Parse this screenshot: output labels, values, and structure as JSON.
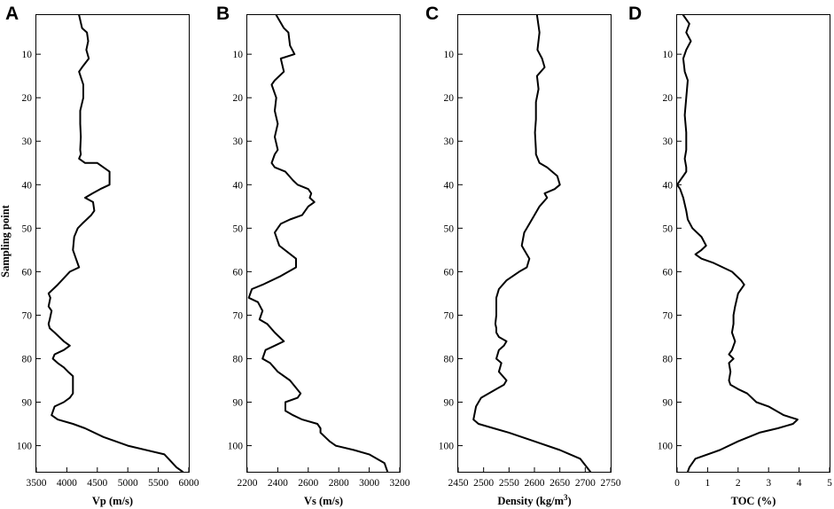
{
  "chart_data": [
    {
      "type": "line",
      "panel_label": "A",
      "xlabel": "Vp (m/s)",
      "ylabel": "Sampling point",
      "xlim": [
        3500,
        6000
      ],
      "ylim": [
        1,
        106
      ],
      "y_inverted": true,
      "xticks": [
        "3500",
        "4000",
        "4500",
        "5000",
        "5500",
        "6000"
      ],
      "yticks": [
        "10",
        "20",
        "30",
        "40",
        "50",
        "60",
        "70",
        "80",
        "90",
        "100"
      ],
      "grid": false,
      "series": [
        {
          "x": [
            4200,
            4250,
            4330,
            4350,
            4320,
            4360,
            4250,
            4200,
            4270,
            4270,
            4220,
            4220,
            4230,
            4220,
            4230,
            4200,
            4300,
            4500,
            4700,
            4700,
            4550,
            4420,
            4300,
            4430,
            4450,
            4400,
            4250,
            4180,
            4120,
            4100,
            4150,
            4200,
            4050,
            3850,
            3700,
            3730,
            3700,
            3750,
            3720,
            3700,
            3720,
            3800,
            3950,
            4050,
            3950,
            3800,
            3770,
            3850,
            3950,
            4020,
            4100,
            4100,
            4050,
            3950,
            3800,
            3750,
            3850,
            4100,
            4300,
            4600,
            5000,
            5600,
            5800,
            5900
          ],
          "y": [
            1,
            4,
            5,
            7,
            9,
            11,
            13,
            14,
            17,
            20,
            23,
            26,
            29,
            32,
            33,
            34,
            35,
            35,
            37,
            40,
            41,
            42,
            43,
            44,
            46,
            47,
            49,
            50,
            52,
            55,
            57,
            59,
            60,
            63,
            65,
            66,
            68,
            69,
            71,
            72,
            73,
            74,
            76,
            77,
            78,
            79,
            80,
            81,
            82,
            83,
            84,
            88,
            89,
            90,
            91,
            93,
            94,
            95,
            96,
            98,
            100,
            102,
            105,
            106
          ]
        }
      ]
    },
    {
      "type": "line",
      "panel_label": "B",
      "xlabel": "Vs (m/s)",
      "ylabel": "",
      "xlim": [
        2200,
        3200
      ],
      "ylim": [
        1,
        106
      ],
      "y_inverted": true,
      "xticks": [
        "2200",
        "2400",
        "2600",
        "2800",
        "3000",
        "3200"
      ],
      "yticks": [
        "10",
        "20",
        "30",
        "40",
        "50",
        "60",
        "70",
        "80",
        "90",
        "100"
      ],
      "grid": false,
      "series": [
        {
          "x": [
            2390,
            2440,
            2470,
            2480,
            2510,
            2420,
            2440,
            2380,
            2360,
            2390,
            2380,
            2400,
            2380,
            2400,
            2380,
            2360,
            2380,
            2450,
            2500,
            2530,
            2600,
            2620,
            2610,
            2640,
            2600,
            2560,
            2480,
            2420,
            2380,
            2410,
            2520,
            2520,
            2420,
            2300,
            2230,
            2210,
            2270,
            2300,
            2280,
            2330,
            2380,
            2440,
            2380,
            2320,
            2300,
            2350,
            2400,
            2480,
            2550,
            2530,
            2450,
            2450,
            2500,
            2560,
            2660,
            2680,
            2680,
            2740,
            2780,
            2900,
            3000,
            3100,
            3120
          ],
          "y": [
            1,
            4,
            5,
            8,
            10,
            11,
            14,
            16,
            17,
            20,
            23,
            26,
            29,
            32,
            33,
            35,
            36,
            37,
            39,
            40,
            41,
            42,
            43,
            44,
            45,
            47,
            48,
            49,
            51,
            54,
            57,
            59,
            61,
            63,
            64,
            66,
            67,
            69,
            71,
            72,
            74,
            76,
            77,
            78,
            80,
            81,
            83,
            85,
            88,
            89,
            90,
            92,
            93,
            94,
            95,
            96,
            97,
            99,
            100,
            101,
            102,
            104,
            106
          ]
        }
      ]
    },
    {
      "type": "line",
      "panel_label": "C",
      "xlabel": "Density (kg/m",
      "xlabel_sup": "3",
      "xlabel_tail": ")",
      "ylabel": "",
      "xlim": [
        2450,
        2750
      ],
      "ylim": [
        1,
        106
      ],
      "y_inverted": true,
      "xticks": [
        "2450",
        "2500",
        "2550",
        "2600",
        "2650",
        "2700",
        "2750"
      ],
      "yticks": [
        "10",
        "20",
        "30",
        "40",
        "50",
        "60",
        "70",
        "80",
        "90",
        "100"
      ],
      "grid": false,
      "series": [
        {
          "x": [
            2605,
            2610,
            2606,
            2615,
            2620,
            2605,
            2608,
            2603,
            2603,
            2601,
            2603,
            2603,
            2610,
            2625,
            2645,
            2650,
            2640,
            2620,
            2625,
            2610,
            2600,
            2590,
            2580,
            2575,
            2580,
            2590,
            2585,
            2570,
            2545,
            2530,
            2525,
            2525,
            2523,
            2525,
            2525,
            2530,
            2545,
            2540,
            2530,
            2525,
            2535,
            2530,
            2545,
            2540,
            2525,
            2495,
            2485,
            2480,
            2490,
            2520,
            2550,
            2600,
            2650,
            2690,
            2710
          ],
          "y": [
            1,
            5,
            9,
            11,
            13,
            15,
            18,
            21,
            25,
            28,
            32,
            33,
            35,
            36,
            38,
            40,
            41,
            42,
            43,
            45,
            47,
            49,
            51,
            54,
            55,
            57,
            59,
            60,
            62,
            64,
            66,
            70,
            72,
            73,
            74,
            75,
            76,
            77,
            78,
            80,
            81,
            83,
            85,
            86,
            87,
            89,
            91,
            94,
            95,
            96,
            97,
            99,
            101,
            103,
            106
          ]
        }
      ]
    },
    {
      "type": "line",
      "panel_label": "D",
      "xlabel": "TOC (%)",
      "ylabel": "",
      "xlim": [
        0,
        5
      ],
      "ylim": [
        1,
        106
      ],
      "y_inverted": true,
      "xticks": [
        "0",
        "1",
        "2",
        "3",
        "4",
        "5"
      ],
      "yticks": [
        "10",
        "20",
        "30",
        "40",
        "50",
        "60",
        "70",
        "80",
        "90",
        "100"
      ],
      "grid": false,
      "series": [
        {
          "x": [
            0.2,
            0.4,
            0.3,
            0.45,
            0.3,
            0.2,
            0.25,
            0.35,
            0.3,
            0.25,
            0.3,
            0.3,
            0.25,
            0.3,
            0.3,
            0.2,
            0.1,
            0.0,
            0.1,
            0.2,
            0.3,
            0.35,
            0.5,
            0.8,
            0.95,
            0.8,
            0.6,
            0.8,
            1.2,
            1.8,
            2.1,
            2.2,
            2.0,
            1.9,
            1.85,
            1.85,
            1.8,
            1.9,
            1.8,
            1.7,
            1.85,
            1.7,
            1.75,
            1.7,
            1.75,
            2.0,
            2.3,
            2.6,
            3.0,
            3.5,
            3.95,
            3.8,
            3.3,
            2.7,
            2.0,
            1.4,
            0.6,
            0.4,
            0.35
          ],
          "y": [
            1,
            3,
            5,
            7,
            9,
            11,
            14,
            16,
            20,
            24,
            28,
            32,
            34,
            36,
            37,
            38,
            39,
            40,
            41,
            43,
            46,
            48,
            50,
            52,
            54,
            55,
            56,
            57,
            58,
            60,
            62,
            63,
            65,
            68,
            70,
            72,
            74,
            76,
            78,
            79,
            80,
            81,
            83,
            85,
            86,
            87,
            88,
            90,
            91,
            93,
            94,
            95,
            96,
            97,
            99,
            101,
            103,
            105,
            106
          ]
        }
      ]
    }
  ]
}
